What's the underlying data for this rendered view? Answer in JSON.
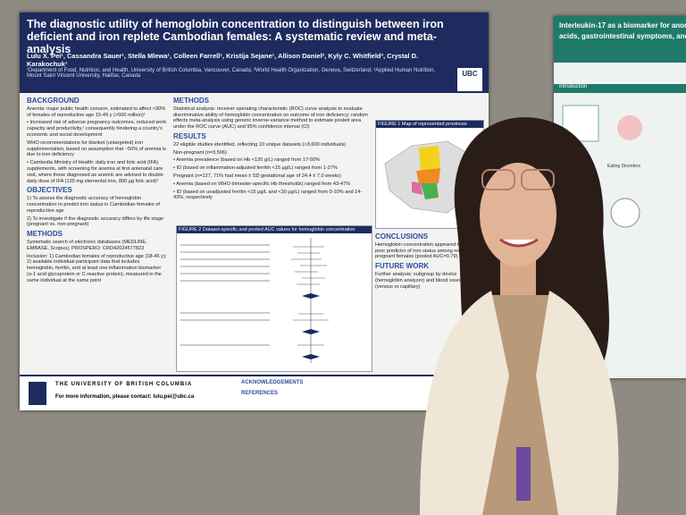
{
  "poster": {
    "title": "The diagnostic utility of hemoglobin concentration to distinguish between iron deficient and iron replete Cambodian females: A systematic review and meta-analysis",
    "authors": "Lulu X. Pei¹, Cassandra Sauer¹, Stella Mlewa¹, Colleen Farrell¹, Kristija Sejane¹, Allison Daniel², Kyly C. Whitfield³, Crystal D. Karakochuk¹",
    "affiliations": "¹Department of Food, Nutrition, and Health, University of British Columbia, Vancouver, Canada; ²World Health Organization, Geneva, Switzerland; ³Applied Human Nutrition, Mount Saint Vincent University, Halifax, Canada",
    "logo": "UBC",
    "left_column": [
      {
        "heading": "BACKGROUND",
        "items": [
          "Anemia: major public health concern, estimated to affect >30% of females of reproductive age 15-49 y (>500 million)¹",
          "• Increased risk of adverse pregnancy outcomes, reduced work capacity and productivity,¹ consequently hindering a country's economic and social development",
          "WHO recommendations for blanket (untargeted) iron supplementation, based on assumption that ~50% of anemia is due to iron deficiency",
          "• Cambodia Ministry of Health: daily iron and folic acid (IFA) supplements, with screening for anemia at first antenatal care visit, where those diagnosed as anemic are advised to double daily dose of IFA (120 mg elemental iron, 800 µg folic acid)²"
        ]
      },
      {
        "heading": "OBJECTIVES",
        "items": [
          "1) To assess the diagnostic accuracy of hemoglobin concentration to predict iron status in Cambodian females of reproductive age",
          "2) To investigate if the diagnostic accuracy differs by life stage (pregnant vs. non-pregnant)"
        ]
      },
      {
        "heading": "METHODS",
        "items": [
          "Systematic search of electronic databases (MEDLINE, EMBASE, Scopus); PROSPERO: CRD42024577823",
          "Inclusion: 1) Cambodian females of reproductive age (18-45 y); 2) available individual participant data that includes hemoglobin, ferritin, and at least one inflammation biomarker (α-1 acid glycoprotein or C-reactive protein), measured in the same individual at the same point"
        ]
      }
    ],
    "middle_column": [
      {
        "heading": "METHODS",
        "items": [
          "Statistical analysis: receiver operating characteristic (ROC) curve analysis to evaluate discriminative ability of hemoglobin concentration on outcome of iron deficiency; random effects meta-analysis using generic inverse-variance method to estimate pooled area under the ROC curve (AUC) and 95% confidence interval (CI)"
        ]
      },
      {
        "heading": "RESULTS",
        "items": [
          "22 eligible studies identified, reflecting 10 unique datasets (>3,600 individuals)",
          "Non-pregnant (n=3,506)",
          "• Anemia prevalence (based on Hb <120 g/L) ranged from 17-50%",
          "• ID (based on inflammation-adjusted ferritin <15 µg/L) ranged from 1-27%",
          "Pregnant (n=127, 71% had mean ± SD gestational age of 24.4 ± 7.0 weeks)",
          "• Anemia (based on WHO trimester-specific Hb thresholds) ranged from 43-47%",
          "• ID (based on unadjusted ferritin <15 µg/L and <30 µg/L) ranged from 0-10% and 14-43%, respectively"
        ]
      }
    ],
    "figure2_title": "FIGURE 2 Dataset-specific and pooled AUC values for hemoglobin concentration",
    "figure1_title": "FIGURE 1 Map of represented provinces",
    "right_column": [
      {
        "heading": "CONCLUSIONS",
        "items": [
          "Hemoglobin concentration appeared to be a poor predictor of iron status among non-pregnant females (pooled AUC=0.79)"
        ]
      },
      {
        "heading": "FUTURE WORK",
        "items": [
          "Further analysis: subgroup by device (hemoglobin analyzer) and blood source (venous or capillary)"
        ]
      }
    ],
    "footer_university": "THE UNIVERSITY OF BRITISH COLUMBIA",
    "footer_contact": "For more information, please contact: lulu.pei@ubc.ca",
    "acknowledgements": "ACKNOWLEDGEMENTS",
    "references": "REFERENCES"
  },
  "second_poster": {
    "title_line1": "Interleukin-17 as a biomarker for anorexi",
    "title_line2": "acids, gastrointestinal symptoms, and m",
    "introduction": "Introduction",
    "eating_disorders": "Eating Disorders"
  }
}
